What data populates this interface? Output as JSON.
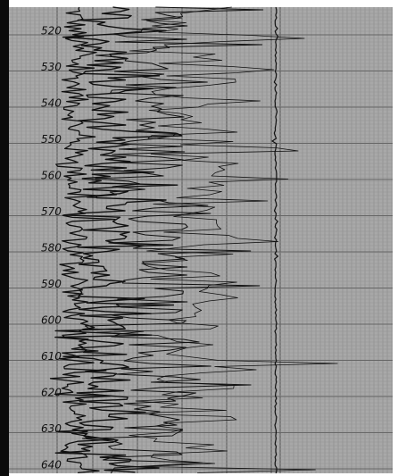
{
  "depth_labels": [
    "520",
    "530",
    "540",
    "550",
    "560",
    "570",
    "580",
    "590",
    "600",
    "610",
    "620",
    "630",
    "640"
  ]
}
